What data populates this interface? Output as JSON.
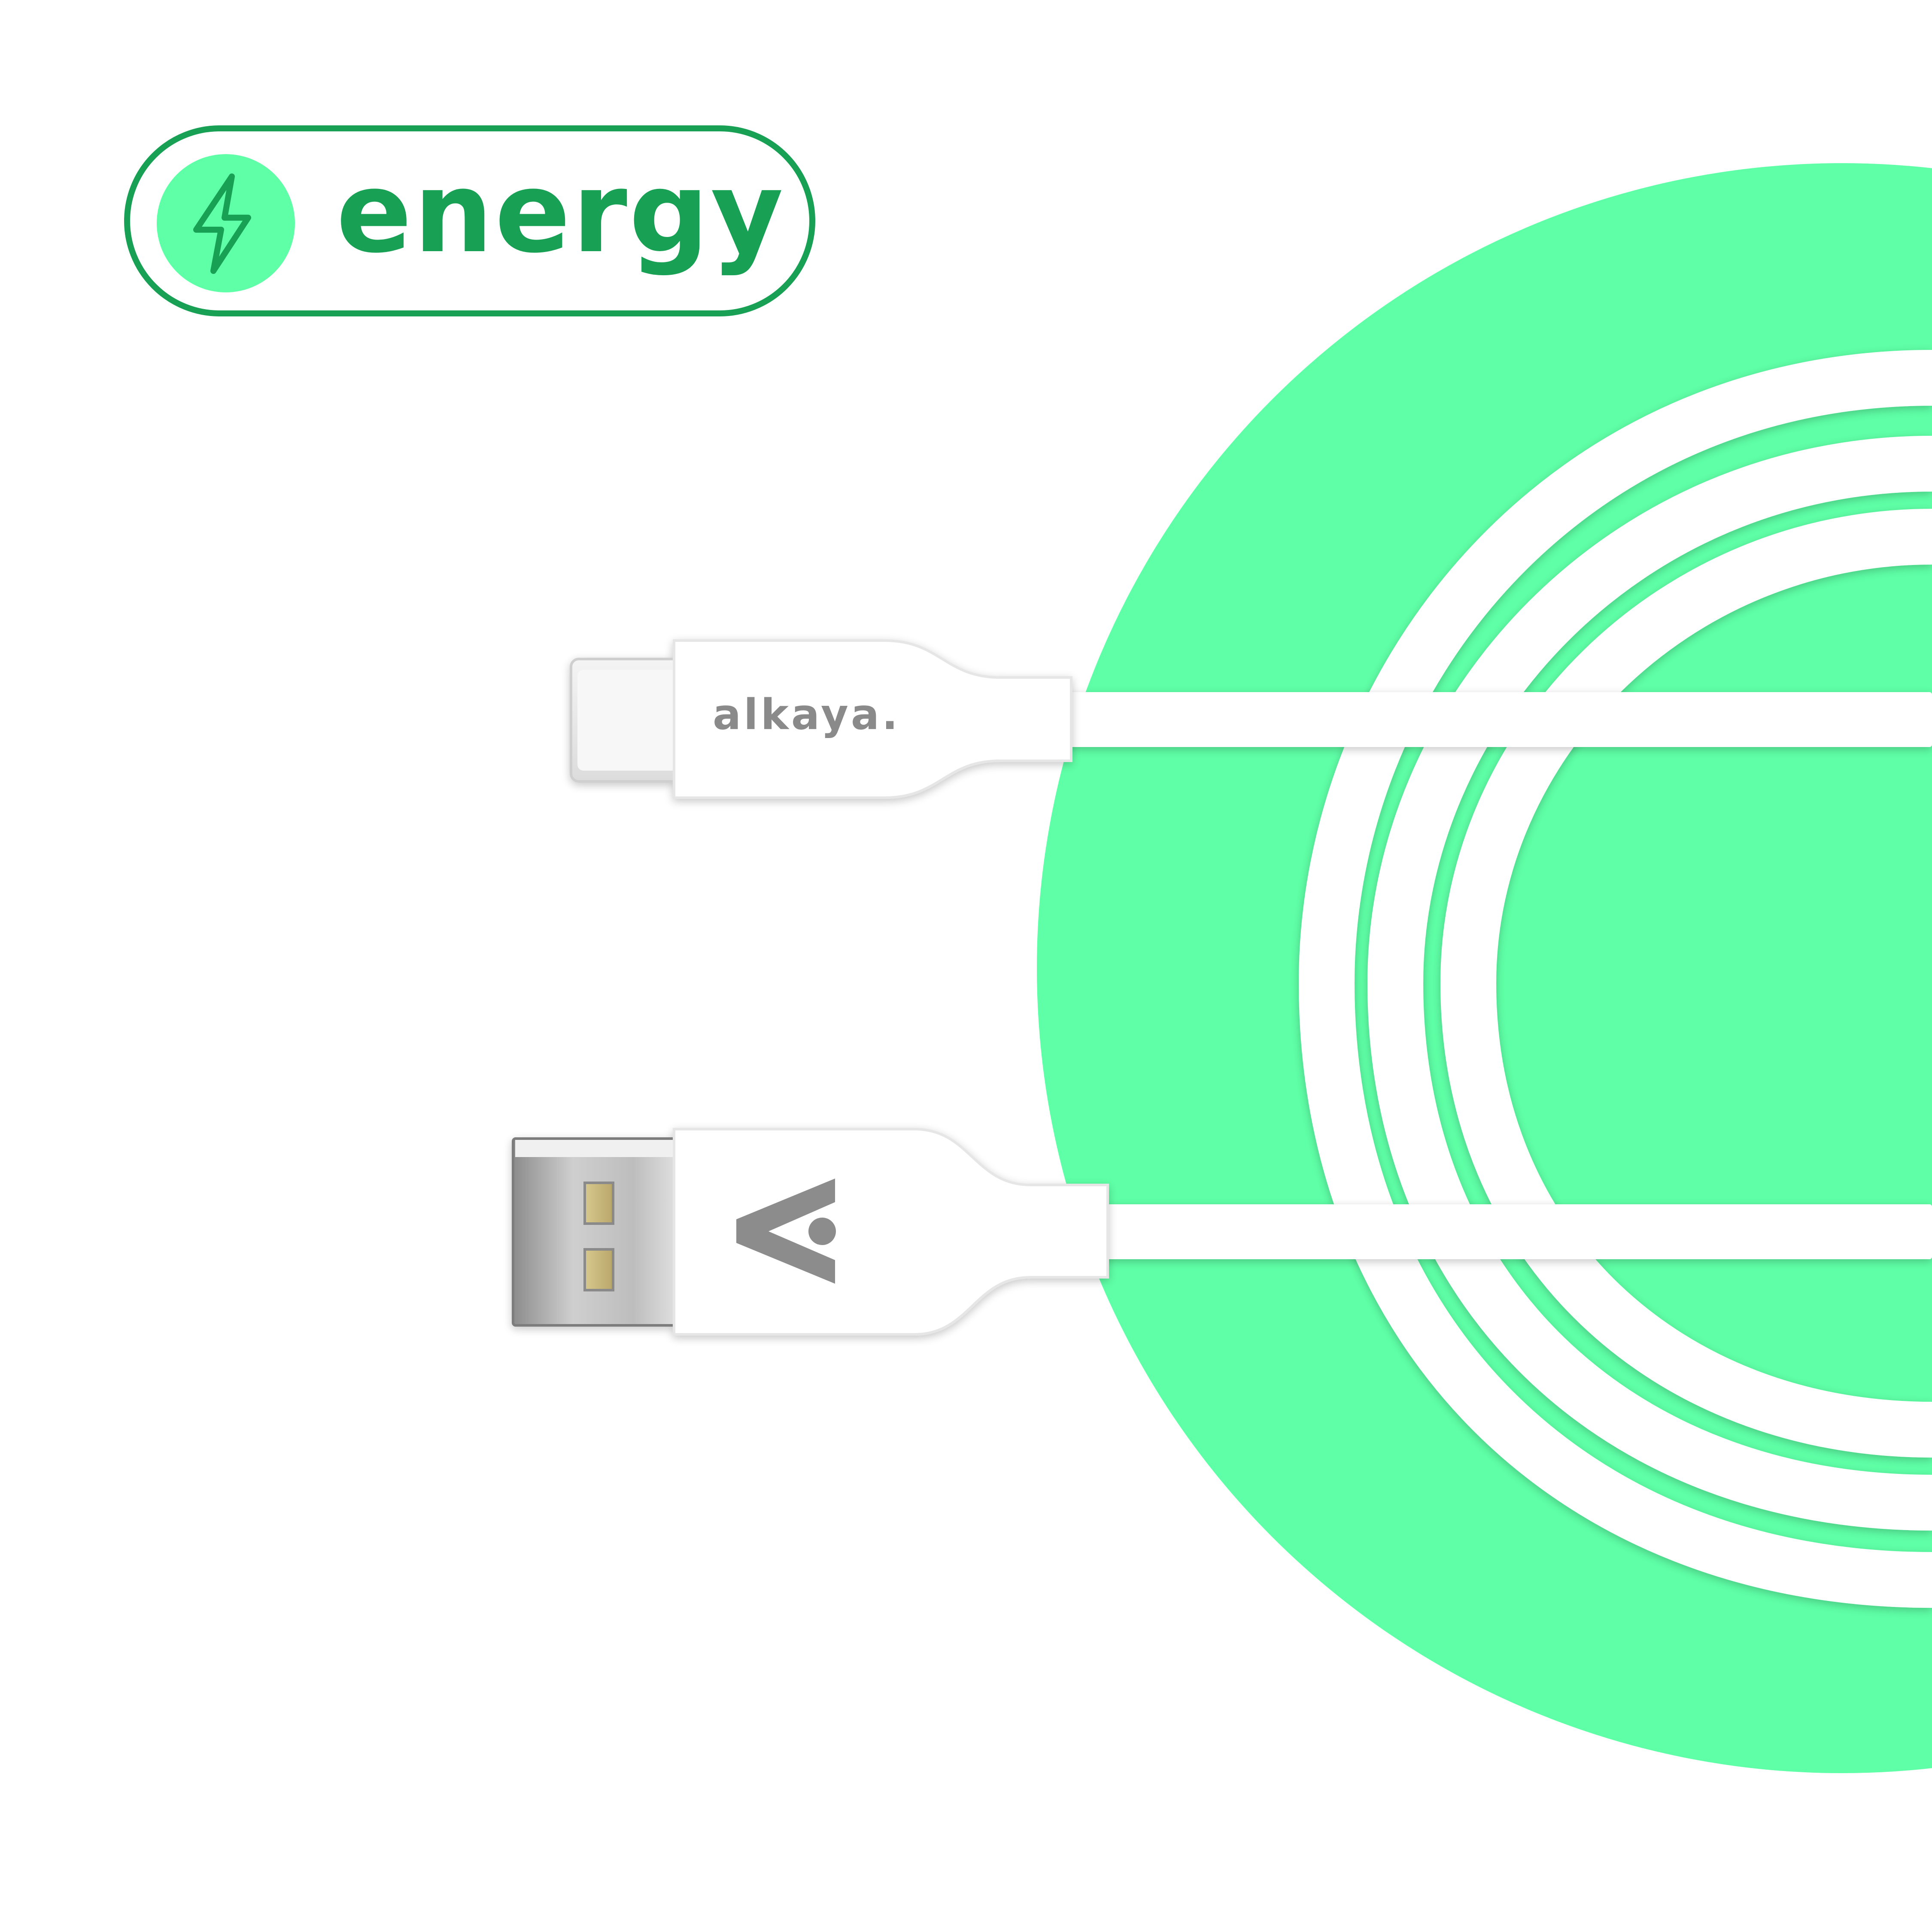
{
  "badge": {
    "label": "energy",
    "icon": "lightning-bolt-icon",
    "border_color": "#18a055",
    "icon_bg_color": "#5effa6"
  },
  "product": {
    "brand_text": "alkaya.",
    "logo": "alkaya-logo-mark",
    "connector_top": "usb-c-connector",
    "connector_bottom": "usb-a-connector",
    "cable_color": "#ffffff"
  },
  "colors": {
    "background_circle": "#5effa6",
    "background": "#ffffff"
  }
}
